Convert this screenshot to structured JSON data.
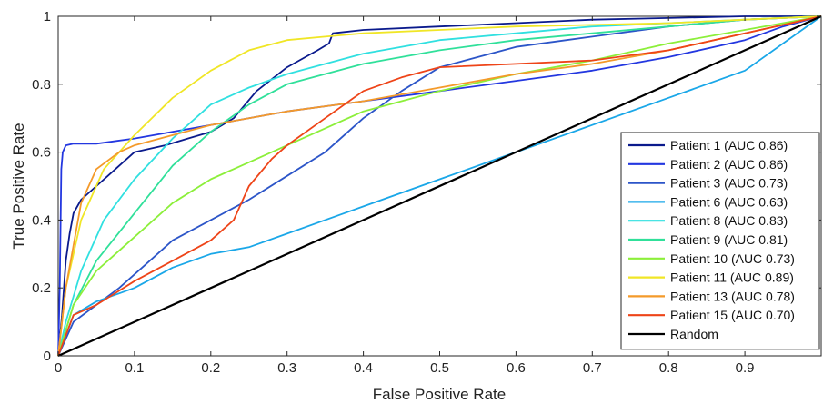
{
  "chart_data": {
    "type": "line",
    "title": "",
    "xlabel": "False Positive Rate",
    "ylabel": "True Positive Rate",
    "xlim": [
      0,
      1
    ],
    "ylim": [
      0,
      1
    ],
    "x_ticks": [
      "0",
      "0.1",
      "0.2",
      "0.3",
      "0.4",
      "0.5",
      "0.6",
      "0.7",
      "0.8",
      "0.9"
    ],
    "y_ticks": [
      "0",
      "0.2",
      "0.4",
      "0.6",
      "0.8",
      "1"
    ],
    "grid": false,
    "legend_position": "right",
    "series": [
      {
        "name": "Patient 1 (AUC 0.86)",
        "color": "#0a1a8c",
        "x": [
          0,
          0.005,
          0.01,
          0.015,
          0.02,
          0.03,
          0.05,
          0.08,
          0.1,
          0.14,
          0.17,
          0.2,
          0.23,
          0.26,
          0.3,
          0.34,
          0.355,
          0.36,
          0.4,
          0.5,
          0.6,
          0.7,
          0.8,
          0.9,
          1.0
        ],
        "y": [
          0,
          0.12,
          0.28,
          0.36,
          0.42,
          0.46,
          0.5,
          0.56,
          0.6,
          0.62,
          0.64,
          0.66,
          0.7,
          0.78,
          0.85,
          0.9,
          0.92,
          0.95,
          0.96,
          0.97,
          0.98,
          0.99,
          0.995,
          1.0,
          1.0
        ]
      },
      {
        "name": "Patient 2 (AUC 0.86)",
        "color": "#2337e0",
        "x": [
          0,
          0.002,
          0.004,
          0.006,
          0.01,
          0.02,
          0.05,
          0.1,
          0.2,
          0.3,
          0.4,
          0.5,
          0.6,
          0.7,
          0.8,
          0.9,
          0.95,
          1.0
        ],
        "y": [
          0,
          0.2,
          0.55,
          0.6,
          0.62,
          0.625,
          0.625,
          0.64,
          0.68,
          0.72,
          0.75,
          0.78,
          0.81,
          0.84,
          0.88,
          0.93,
          0.97,
          1.0
        ]
      },
      {
        "name": "Patient 3 (AUC 0.73)",
        "color": "#2c55c8",
        "x": [
          0,
          0.02,
          0.05,
          0.08,
          0.12,
          0.15,
          0.2,
          0.25,
          0.3,
          0.35,
          0.4,
          0.45,
          0.5,
          0.55,
          0.6,
          0.7,
          0.8,
          0.9,
          1.0
        ],
        "y": [
          0,
          0.1,
          0.15,
          0.2,
          0.28,
          0.34,
          0.4,
          0.46,
          0.53,
          0.6,
          0.7,
          0.78,
          0.85,
          0.88,
          0.91,
          0.94,
          0.97,
          0.99,
          1.0
        ]
      },
      {
        "name": "Patient 6 (AUC 0.63)",
        "color": "#1aa7e8",
        "x": [
          0,
          0.02,
          0.05,
          0.1,
          0.15,
          0.2,
          0.25,
          0.3,
          0.4,
          0.5,
          0.6,
          0.7,
          0.8,
          0.9,
          1.0
        ],
        "y": [
          0,
          0.12,
          0.16,
          0.2,
          0.26,
          0.3,
          0.32,
          0.36,
          0.44,
          0.52,
          0.6,
          0.68,
          0.76,
          0.84,
          1.0
        ]
      },
      {
        "name": "Patient 8 (AUC 0.83)",
        "color": "#30e0e0",
        "x": [
          0,
          0.01,
          0.03,
          0.06,
          0.1,
          0.15,
          0.2,
          0.25,
          0.3,
          0.4,
          0.5,
          0.6,
          0.7,
          0.8,
          0.9,
          1.0
        ],
        "y": [
          0,
          0.1,
          0.25,
          0.4,
          0.52,
          0.64,
          0.74,
          0.79,
          0.83,
          0.89,
          0.93,
          0.95,
          0.97,
          0.98,
          0.99,
          1.0
        ]
      },
      {
        "name": "Patient 9 (AUC 0.81)",
        "color": "#30e09a",
        "x": [
          0,
          0.02,
          0.05,
          0.1,
          0.15,
          0.2,
          0.25,
          0.3,
          0.4,
          0.5,
          0.6,
          0.7,
          0.8,
          0.9,
          1.0
        ],
        "y": [
          0,
          0.15,
          0.28,
          0.42,
          0.56,
          0.66,
          0.74,
          0.8,
          0.86,
          0.9,
          0.93,
          0.95,
          0.97,
          0.99,
          1.0
        ]
      },
      {
        "name": "Patient 10 (AUC 0.73)",
        "color": "#8cef3a",
        "x": [
          0,
          0.02,
          0.05,
          0.1,
          0.15,
          0.2,
          0.25,
          0.3,
          0.35,
          0.4,
          0.5,
          0.6,
          0.7,
          0.8,
          0.9,
          1.0
        ],
        "y": [
          0,
          0.15,
          0.25,
          0.35,
          0.45,
          0.52,
          0.57,
          0.62,
          0.67,
          0.72,
          0.78,
          0.83,
          0.87,
          0.92,
          0.96,
          1.0
        ]
      },
      {
        "name": "Patient 11 (AUC 0.89)",
        "color": "#f0e626",
        "x": [
          0,
          0.01,
          0.03,
          0.06,
          0.1,
          0.15,
          0.2,
          0.25,
          0.3,
          0.35,
          0.4,
          0.5,
          0.6,
          0.7,
          0.8,
          0.9,
          1.0
        ],
        "y": [
          0,
          0.2,
          0.4,
          0.55,
          0.65,
          0.76,
          0.84,
          0.9,
          0.93,
          0.94,
          0.95,
          0.96,
          0.97,
          0.975,
          0.98,
          0.99,
          1.0
        ]
      },
      {
        "name": "Patient 13 (AUC 0.78)",
        "color": "#f49a2a",
        "x": [
          0,
          0.01,
          0.03,
          0.05,
          0.08,
          0.1,
          0.15,
          0.2,
          0.25,
          0.3,
          0.4,
          0.5,
          0.6,
          0.7,
          0.8,
          0.9,
          1.0
        ],
        "y": [
          0,
          0.2,
          0.45,
          0.55,
          0.6,
          0.62,
          0.65,
          0.68,
          0.7,
          0.72,
          0.75,
          0.79,
          0.83,
          0.86,
          0.9,
          0.95,
          1.0
        ]
      },
      {
        "name": "Patient 15 (AUC 0.70)",
        "color": "#ee4418",
        "x": [
          0,
          0.02,
          0.05,
          0.1,
          0.15,
          0.2,
          0.23,
          0.25,
          0.28,
          0.3,
          0.35,
          0.4,
          0.45,
          0.5,
          0.6,
          0.7,
          0.8,
          0.9,
          1.0
        ],
        "y": [
          0,
          0.12,
          0.15,
          0.22,
          0.28,
          0.34,
          0.4,
          0.5,
          0.58,
          0.62,
          0.7,
          0.78,
          0.82,
          0.85,
          0.86,
          0.87,
          0.9,
          0.95,
          1.0
        ]
      },
      {
        "name": "Random",
        "color": "#000000",
        "x": [
          0,
          1
        ],
        "y": [
          0,
          1
        ]
      }
    ]
  }
}
